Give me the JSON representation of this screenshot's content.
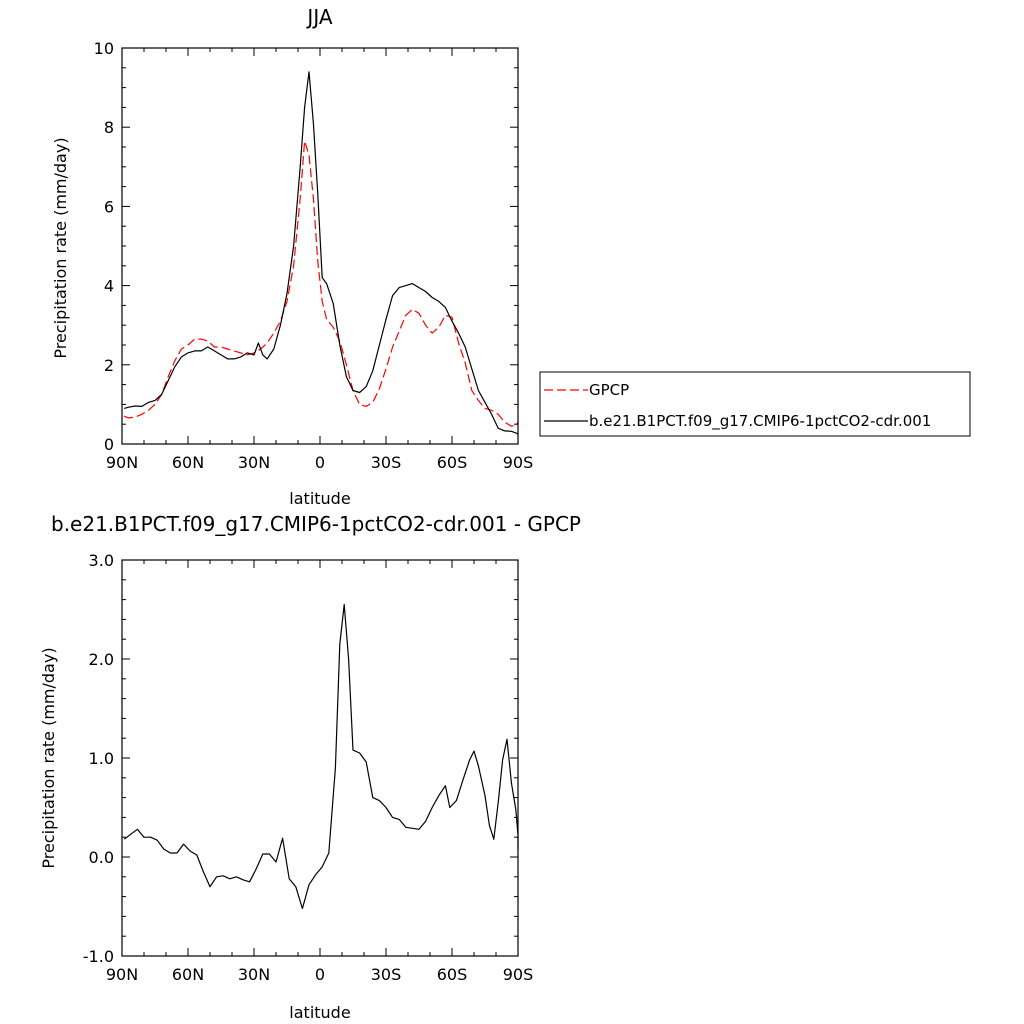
{
  "chart_data": [
    {
      "type": "line",
      "title": "JJA",
      "xlabel": "latitude",
      "ylabel": "Precipitation rate (mm/day)",
      "xlim": [
        90,
        -90
      ],
      "ylim": [
        0,
        10
      ],
      "xticks": [
        90,
        60,
        30,
        0,
        -30,
        -60,
        -90
      ],
      "xtick_labels": [
        "90N",
        "60N",
        "30N",
        "0",
        "30S",
        "60S",
        "90S"
      ],
      "yticks": [
        0,
        2,
        4,
        6,
        8,
        10
      ],
      "ytick_labels": [
        "0",
        "2",
        "4",
        "6",
        "8",
        "10"
      ],
      "grid": false,
      "legend_position": "right",
      "series": [
        {
          "name": "GPCP",
          "color": "#ff0000",
          "dash": "dashed",
          "points": [
            [
              89,
              0.7
            ],
            [
              87,
              0.66
            ],
            [
              84,
              0.68
            ],
            [
              81,
              0.75
            ],
            [
              78,
              0.85
            ],
            [
              75,
              1.0
            ],
            [
              72,
              1.25
            ],
            [
              69,
              1.7
            ],
            [
              66,
              2.1
            ],
            [
              63,
              2.4
            ],
            [
              60,
              2.5
            ],
            [
              57,
              2.65
            ],
            [
              54,
              2.65
            ],
            [
              51,
              2.6
            ],
            [
              48,
              2.45
            ],
            [
              45,
              2.45
            ],
            [
              42,
              2.4
            ],
            [
              39,
              2.35
            ],
            [
              36,
              2.3
            ],
            [
              33,
              2.25
            ],
            [
              30,
              2.3
            ],
            [
              27,
              2.4
            ],
            [
              24,
              2.55
            ],
            [
              21,
              2.8
            ],
            [
              18,
              3.1
            ],
            [
              15,
              3.6
            ],
            [
              12,
              4.5
            ],
            [
              9,
              6.2
            ],
            [
              7,
              7.65
            ],
            [
              5,
              7.3
            ],
            [
              3,
              6.2
            ],
            [
              1,
              4.6
            ],
            [
              -1,
              3.6
            ],
            [
              -3,
              3.15
            ],
            [
              -6,
              2.95
            ],
            [
              -9,
              2.6
            ],
            [
              -12,
              2.0
            ],
            [
              -15,
              1.35
            ],
            [
              -18,
              1.0
            ],
            [
              -21,
              0.95
            ],
            [
              -24,
              1.05
            ],
            [
              -27,
              1.4
            ],
            [
              -30,
              1.9
            ],
            [
              -33,
              2.45
            ],
            [
              -36,
              2.85
            ],
            [
              -39,
              3.25
            ],
            [
              -42,
              3.4
            ],
            [
              -45,
              3.3
            ],
            [
              -48,
              3.0
            ],
            [
              -51,
              2.8
            ],
            [
              -54,
              2.95
            ],
            [
              -57,
              3.25
            ],
            [
              -60,
              3.2
            ],
            [
              -63,
              2.55
            ],
            [
              -66,
              2.05
            ],
            [
              -69,
              1.35
            ],
            [
              -72,
              1.1
            ],
            [
              -75,
              0.9
            ],
            [
              -78,
              0.85
            ],
            [
              -81,
              0.75
            ],
            [
              -84,
              0.55
            ],
            [
              -87,
              0.45
            ],
            [
              -89,
              0.48
            ],
            [
              -90,
              0.55
            ]
          ]
        },
        {
          "name": "b.e21.B1PCT.f09_g17.CMIP6-1pctCO2-cdr.001",
          "color": "#000000",
          "dash": "solid",
          "points": [
            [
              89,
              0.9
            ],
            [
              87,
              0.93
            ],
            [
              84,
              0.96
            ],
            [
              81,
              0.95
            ],
            [
              78,
              1.05
            ],
            [
              75,
              1.1
            ],
            [
              72,
              1.25
            ],
            [
              69,
              1.6
            ],
            [
              66,
              1.95
            ],
            [
              63,
              2.2
            ],
            [
              60,
              2.3
            ],
            [
              57,
              2.35
            ],
            [
              54,
              2.35
            ],
            [
              51,
              2.45
            ],
            [
              48,
              2.35
            ],
            [
              45,
              2.25
            ],
            [
              42,
              2.15
            ],
            [
              39,
              2.15
            ],
            [
              36,
              2.2
            ],
            [
              33,
              2.3
            ],
            [
              30,
              2.25
            ],
            [
              28,
              2.55
            ],
            [
              26,
              2.25
            ],
            [
              24,
              2.15
            ],
            [
              21,
              2.4
            ],
            [
              18,
              3.0
            ],
            [
              15,
              3.8
            ],
            [
              12,
              5.0
            ],
            [
              9,
              7.0
            ],
            [
              7,
              8.5
            ],
            [
              5,
              9.4
            ],
            [
              3,
              8.1
            ],
            [
              1,
              6.3
            ],
            [
              -1,
              4.2
            ],
            [
              -3,
              4.05
            ],
            [
              -6,
              3.55
            ],
            [
              -9,
              2.5
            ],
            [
              -12,
              1.7
            ],
            [
              -15,
              1.35
            ],
            [
              -18,
              1.3
            ],
            [
              -21,
              1.45
            ],
            [
              -24,
              1.85
            ],
            [
              -27,
              2.5
            ],
            [
              -30,
              3.15
            ],
            [
              -33,
              3.75
            ],
            [
              -36,
              3.95
            ],
            [
              -39,
              4.0
            ],
            [
              -42,
              4.05
            ],
            [
              -45,
              3.95
            ],
            [
              -48,
              3.85
            ],
            [
              -51,
              3.7
            ],
            [
              -54,
              3.6
            ],
            [
              -57,
              3.45
            ],
            [
              -60,
              3.1
            ],
            [
              -63,
              2.8
            ],
            [
              -66,
              2.45
            ],
            [
              -69,
              1.9
            ],
            [
              -72,
              1.35
            ],
            [
              -75,
              1.05
            ],
            [
              -78,
              0.75
            ],
            [
              -81,
              0.4
            ],
            [
              -84,
              0.33
            ],
            [
              -87,
              0.32
            ],
            [
              -89,
              0.28
            ],
            [
              -90,
              0.25
            ]
          ]
        }
      ]
    },
    {
      "type": "line",
      "title": "b.e21.B1PCT.f09_g17.CMIP6-1pctCO2-cdr.001 - GPCP",
      "xlabel": "latitude",
      "ylabel": "Precipitation rate (mm/day)",
      "xlim": [
        90,
        -90
      ],
      "ylim": [
        -1.0,
        3.0
      ],
      "xticks": [
        90,
        60,
        30,
        0,
        -30,
        -60,
        -90
      ],
      "xtick_labels": [
        "90N",
        "60N",
        "30N",
        "0",
        "30S",
        "60S",
        "90S"
      ],
      "yticks": [
        -1.0,
        0.0,
        1.0,
        2.0,
        3.0
      ],
      "ytick_labels": [
        "-1.0",
        "0.0",
        "1.0",
        "2.0",
        "3.0"
      ],
      "grid": false,
      "series": [
        {
          "color": "#000000",
          "dash": "solid",
          "points": [
            [
              89,
              0.18
            ],
            [
              86,
              0.23
            ],
            [
              83,
              0.28
            ],
            [
              80,
              0.2
            ],
            [
              77,
              0.2
            ],
            [
              74,
              0.17
            ],
            [
              71,
              0.08
            ],
            [
              68,
              0.04
            ],
            [
              65,
              0.04
            ],
            [
              62,
              0.13
            ],
            [
              59,
              0.06
            ],
            [
              56,
              0.02
            ],
            [
              53,
              -0.15
            ],
            [
              50,
              -0.3
            ],
            [
              47,
              -0.2
            ],
            [
              44,
              -0.19
            ],
            [
              41,
              -0.22
            ],
            [
              38,
              -0.2
            ],
            [
              35,
              -0.23
            ],
            [
              32,
              -0.25
            ],
            [
              29,
              -0.12
            ],
            [
              26,
              0.03
            ],
            [
              23,
              0.03
            ],
            [
              20,
              -0.05
            ],
            [
              17,
              0.19
            ],
            [
              14,
              -0.22
            ],
            [
              11,
              -0.3
            ],
            [
              8,
              -0.52
            ],
            [
              5,
              -0.28
            ],
            [
              2,
              -0.18
            ],
            [
              -1,
              -0.1
            ],
            [
              -4,
              0.04
            ],
            [
              -7,
              0.9
            ],
            [
              -9,
              2.15
            ],
            [
              -11,
              2.55
            ],
            [
              -13,
              2.0
            ],
            [
              -15,
              1.08
            ],
            [
              -18,
              1.05
            ],
            [
              -21,
              0.96
            ],
            [
              -24,
              0.6
            ],
            [
              -27,
              0.57
            ],
            [
              -30,
              0.5
            ],
            [
              -33,
              0.4
            ],
            [
              -36,
              0.38
            ],
            [
              -39,
              0.3
            ],
            [
              -42,
              0.29
            ],
            [
              -45,
              0.28
            ],
            [
              -48,
              0.36
            ],
            [
              -51,
              0.5
            ],
            [
              -54,
              0.62
            ],
            [
              -57,
              0.72
            ],
            [
              -59,
              0.5
            ],
            [
              -62,
              0.57
            ],
            [
              -65,
              0.78
            ],
            [
              -68,
              0.98
            ],
            [
              -70,
              1.07
            ],
            [
              -72,
              0.92
            ],
            [
              -75,
              0.62
            ],
            [
              -77,
              0.32
            ],
            [
              -79,
              0.18
            ],
            [
              -81,
              0.55
            ],
            [
              -83,
              0.98
            ],
            [
              -85,
              1.19
            ],
            [
              -87,
              0.75
            ],
            [
              -89,
              0.48
            ],
            [
              -90,
              0.22
            ],
            [
              -90,
              0.08
            ]
          ]
        }
      ]
    }
  ]
}
